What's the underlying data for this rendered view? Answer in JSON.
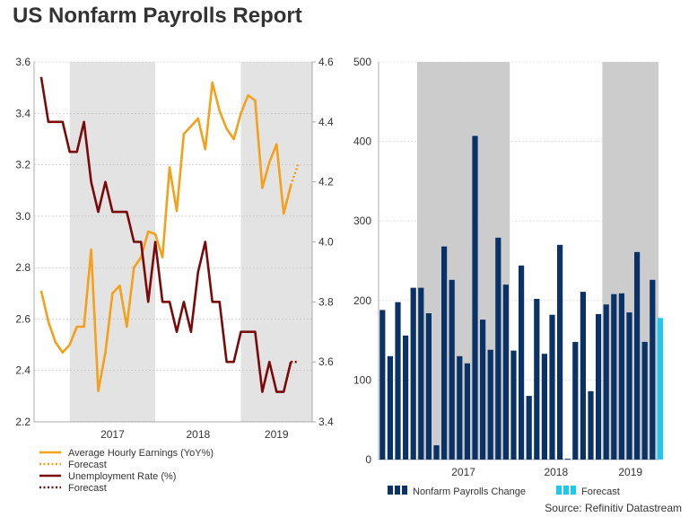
{
  "title": "US Nonfarm Payrolls Report",
  "source": "Source: Refinitiv Datastream",
  "colors": {
    "earnings": "#f5a01a",
    "unemployment": "#7a0a0a",
    "payrolls": "#0b3266",
    "forecast_bar": "#1ec8ee",
    "shade": "#e3e3e3",
    "shade_right": "#cccccc"
  },
  "chart_data": [
    {
      "type": "line",
      "title": "",
      "x_years": [
        "2017",
        "2018",
        "2019"
      ],
      "shaded_periods": [
        "2017",
        "2019"
      ],
      "left_axis": {
        "ylim": [
          2.2,
          3.6
        ],
        "ticks": [
          "2.2",
          "2.4",
          "2.6",
          "2.8",
          "3.0",
          "3.2",
          "3.4",
          "3.6"
        ]
      },
      "right_axis": {
        "ylim": [
          3.4,
          4.6
        ],
        "ticks": [
          "3.4",
          "3.6",
          "3.8",
          "4.0",
          "4.2",
          "4.4",
          "4.6"
        ]
      },
      "series": [
        {
          "name": "Average Hourly Earnings (YoY%)",
          "axis": "left",
          "start": "2016-09",
          "values": [
            2.71,
            2.59,
            2.51,
            2.47,
            2.5,
            2.57,
            2.57,
            2.87,
            2.32,
            2.47,
            2.7,
            2.73,
            2.57,
            2.8,
            2.84,
            2.94,
            2.93,
            2.84,
            3.19,
            3.02,
            3.32,
            3.35,
            3.38,
            3.26,
            3.52,
            3.41,
            3.34,
            3.3,
            3.4,
            3.47,
            3.45,
            3.11,
            3.21,
            3.28,
            3.01,
            3.12
          ]
        },
        {
          "name": "Forecast",
          "axis": "left",
          "start": "2019-08",
          "values": [
            3.12,
            3.2
          ]
        },
        {
          "name": "Unemployment Rate (%)",
          "axis": "right",
          "start": "2016-09",
          "values": [
            4.55,
            4.4,
            4.4,
            4.4,
            4.3,
            4.3,
            4.4,
            4.2,
            4.1,
            4.2,
            4.1,
            4.1,
            4.1,
            4.0,
            4.0,
            3.8,
            4.0,
            3.8,
            3.8,
            3.7,
            3.8,
            3.7,
            3.9,
            4.0,
            3.8,
            3.8,
            3.6,
            3.6,
            3.7,
            3.7,
            3.7,
            3.5,
            3.6,
            3.5,
            3.5,
            3.6
          ]
        },
        {
          "name": "Forecast",
          "axis": "right",
          "start": "2019-08",
          "values": [
            3.6,
            3.6
          ]
        }
      ]
    },
    {
      "type": "bar",
      "x_years": [
        "2017",
        "2018",
        "2019"
      ],
      "shaded_periods": [
        "2017",
        "2019"
      ],
      "ylim": [
        0,
        500
      ],
      "ticks": [
        "0",
        "100",
        "200",
        "300",
        "400",
        "500"
      ],
      "series": [
        {
          "name": "Nonfarm Payrolls Change",
          "start": "2016-08",
          "values": [
            188,
            130,
            198,
            156,
            216,
            216,
            184,
            18,
            268,
            226,
            130,
            121,
            407,
            176,
            138,
            279,
            220,
            137,
            244,
            80,
            202,
            133,
            182,
            270,
            1,
            148,
            211,
            86,
            183,
            195,
            208,
            209,
            185,
            261,
            148,
            226
          ]
        },
        {
          "name": "Forecast",
          "start": "2019-08",
          "values": [
            178
          ]
        }
      ]
    }
  ],
  "legend_left": [
    {
      "label": "Average Hourly Earnings (YoY%)",
      "style": "solid",
      "color_key": "earnings"
    },
    {
      "label": "Forecast",
      "style": "dotted",
      "color_key": "earnings"
    },
    {
      "label": "Unemployment Rate (%)",
      "style": "solid",
      "color_key": "unemployment"
    },
    {
      "label": "Forecast",
      "style": "dotted",
      "color_key": "unemployment"
    }
  ],
  "legend_right": [
    {
      "label": "Nonfarm Payrolls Change",
      "color_key": "payrolls"
    },
    {
      "label": "Forecast",
      "color_key": "forecast_bar"
    }
  ]
}
